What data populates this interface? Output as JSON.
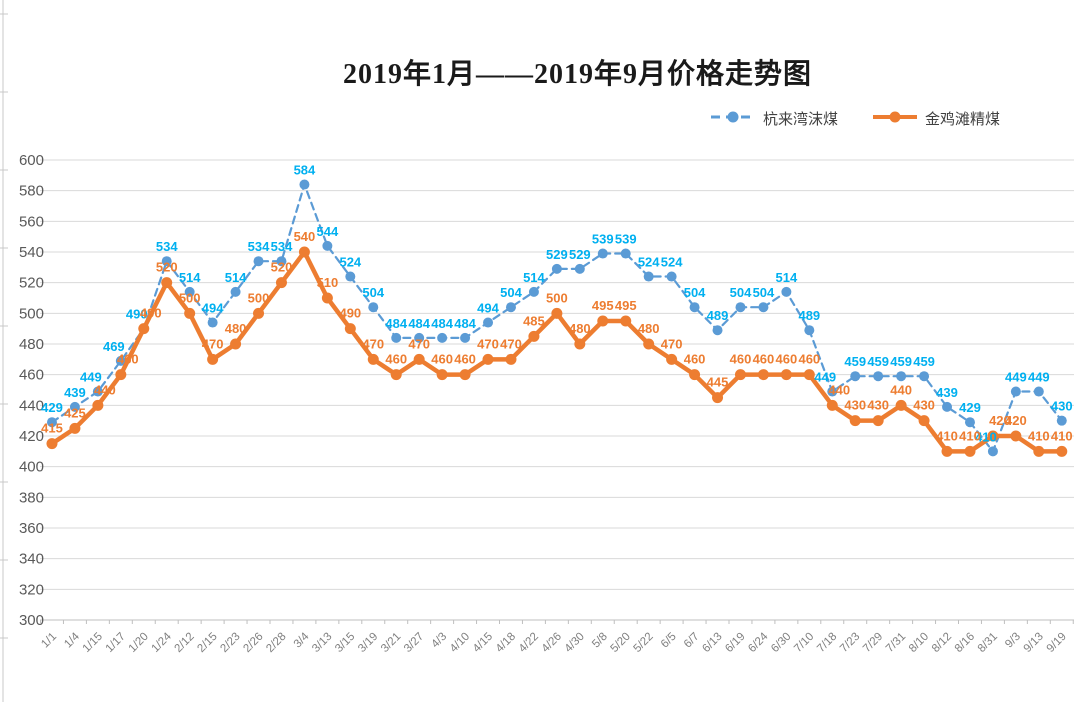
{
  "chart_data": {
    "type": "line",
    "title": "2019年1月——2019年9月价格走势图",
    "xlabel": "",
    "ylabel": "",
    "ylim": [
      300,
      600
    ],
    "y_ticks": [
      600,
      580,
      560,
      540,
      520,
      500,
      480,
      460,
      440,
      420,
      400,
      380,
      360,
      340,
      320,
      300
    ],
    "grid": true,
    "data_labels": true,
    "legend_position": "top-right",
    "categories": [
      "1/1",
      "1/4",
      "1/15",
      "1/17",
      "1/20",
      "1/24",
      "2/12",
      "2/15",
      "2/23",
      "2/26",
      "2/28",
      "3/4",
      "3/13",
      "3/15",
      "3/19",
      "3/21",
      "3/27",
      "4/3",
      "4/10",
      "4/15",
      "4/18",
      "4/22",
      "4/26",
      "4/30",
      "5/8",
      "5/20",
      "5/22",
      "6/5",
      "6/7",
      "6/13",
      "6/19",
      "6/24",
      "6/30",
      "7/10",
      "7/18",
      "7/23",
      "7/29",
      "7/31",
      "8/10",
      "8/12",
      "8/16",
      "8/31",
      "9/3",
      "9/13",
      "9/19"
    ],
    "series": [
      {
        "name": "杭来湾沫煤",
        "color": "#5B9BD5",
        "label_color": "#00B0F0",
        "line_style": "dashed",
        "marker": "circle",
        "values": [
          429,
          439,
          449,
          469,
          490,
          534,
          514,
          494,
          514,
          534,
          534,
          584,
          544,
          524,
          504,
          484,
          484,
          484,
          484,
          494,
          504,
          514,
          529,
          529,
          539,
          539,
          524,
          524,
          504,
          489,
          504,
          504,
          514,
          489,
          449,
          459,
          459,
          459,
          459,
          439,
          429,
          410,
          449,
          449,
          430
        ]
      },
      {
        "name": "金鸡滩精煤",
        "color": "#ED7D31",
        "label_color": "#ED7D31",
        "line_style": "solid",
        "marker": "circle",
        "values": [
          415,
          425,
          440,
          460,
          490,
          520,
          500,
          470,
          480,
          500,
          520,
          540,
          510,
          490,
          470,
          460,
          470,
          460,
          460,
          470,
          470,
          485,
          500,
          480,
          495,
          495,
          480,
          470,
          460,
          445,
          460,
          460,
          460,
          460,
          440,
          430,
          430,
          440,
          430,
          410,
          410,
          420,
          420,
          410,
          410
        ]
      }
    ]
  }
}
